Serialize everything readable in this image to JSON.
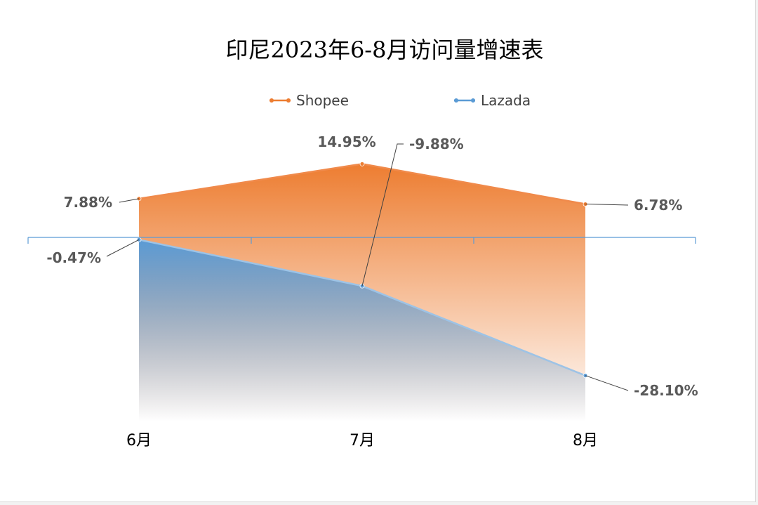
{
  "chart_data": {
    "type": "area",
    "title": "印尼2023年6-8月访问量增速表",
    "categories": [
      "6月",
      "7月",
      "8月"
    ],
    "series": [
      {
        "name": "Shopee",
        "values": [
          7.88,
          14.95,
          6.78
        ],
        "labels": [
          "7.88%",
          "14.95%",
          "6.78%"
        ],
        "color": "#ed7d31"
      },
      {
        "name": "Lazada",
        "values": [
          -0.47,
          -9.88,
          -28.1
        ],
        "labels": [
          "-0.47%",
          "-9.88%",
          "-28.10%"
        ],
        "color": "#5b9bd5"
      }
    ],
    "ylim": [
      -28.1,
      14.95
    ],
    "grid": false,
    "legend_position": "top",
    "axis_color": "#5b9bd5"
  }
}
